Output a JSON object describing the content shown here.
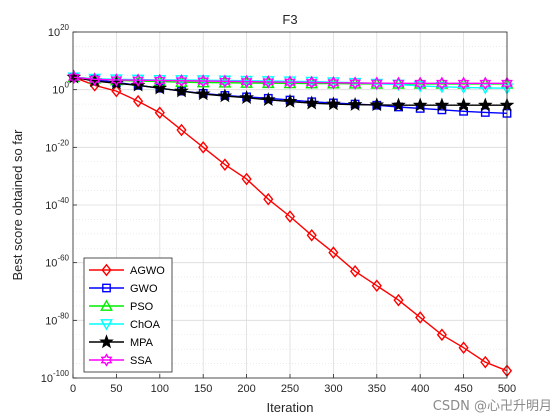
{
  "watermark": "CSDN @心卍升明月",
  "chart_data": {
    "type": "line",
    "title": "F3",
    "xlabel": "Iteration",
    "ylabel": "Best score obtained so far",
    "yscale": "log",
    "xlim": [
      0,
      500
    ],
    "ylim_exp": [
      -100,
      20
    ],
    "x_ticks": [
      0,
      50,
      100,
      150,
      200,
      250,
      300,
      350,
      400,
      450,
      500
    ],
    "y_tick_exps": [
      -100,
      -80,
      -60,
      -40,
      -20,
      0,
      20
    ],
    "grid": true,
    "minor_grid_y": true,
    "legend": "bottom-left",
    "x": [
      1,
      25,
      50,
      75,
      100,
      125,
      150,
      175,
      200,
      225,
      250,
      275,
      300,
      325,
      350,
      375,
      400,
      425,
      450,
      475,
      500
    ],
    "series": [
      {
        "name": "AGWO",
        "color": "#ff0000",
        "marker": "diamond",
        "log10_values": [
          4.3,
          1.5,
          -0.5,
          -4,
          -8,
          -14,
          -20,
          -26,
          -31,
          -38,
          -44,
          -50.5,
          -56.5,
          -63,
          -68,
          -73,
          -79,
          -85,
          -89.5,
          -94.5,
          -97.5
        ]
      },
      {
        "name": "GWO",
        "color": "#0000ff",
        "marker": "square",
        "log10_values": [
          4.3,
          3.5,
          2.5,
          1.5,
          0.5,
          -0.5,
          -1.3,
          -2,
          -2.5,
          -3,
          -3.6,
          -4.2,
          -4.6,
          -5,
          -5.4,
          -6,
          -6.5,
          -7,
          -7.5,
          -7.9,
          -8.2
        ]
      },
      {
        "name": "PSO",
        "color": "#00ee00",
        "marker": "triangle",
        "log10_values": [
          4.3,
          3.8,
          3.2,
          3,
          2.8,
          2.6,
          2.5,
          2.4,
          2.3,
          2.25,
          2.2,
          2.15,
          2.1,
          2.05,
          2.0,
          2.0,
          2.0,
          2.0,
          2.0,
          2.0,
          2.0
        ]
      },
      {
        "name": "ChOA",
        "color": "#00ffff",
        "marker": "triangle-down",
        "log10_values": [
          4.3,
          3.8,
          3.6,
          3.5,
          3.4,
          3.35,
          3.3,
          3.2,
          3.1,
          3.0,
          2.9,
          2.8,
          2.6,
          2.4,
          2.1,
          1.8,
          1.3,
          1.0,
          0.8,
          0.6,
          0.5
        ]
      },
      {
        "name": "MPA",
        "color": "#000000",
        "marker": "star",
        "log10_values": [
          4.3,
          3.0,
          2.2,
          1.5,
          0.5,
          -0.5,
          -1.5,
          -2.2,
          -2.8,
          -3.5,
          -4.1,
          -4.7,
          -5.0,
          -5.2,
          -5.3,
          -5.4,
          -5.4,
          -5.4,
          -5.4,
          -5.4,
          -5.4
        ]
      },
      {
        "name": "SSA",
        "color": "#ff00ff",
        "marker": "hexagram",
        "log10_values": [
          4.3,
          3.6,
          3.4,
          3.3,
          3.2,
          3.1,
          3.0,
          2.9,
          2.8,
          2.7,
          2.6,
          2.5,
          2.4,
          2.3,
          2.25,
          2.2,
          2.2,
          2.2,
          2.2,
          2.2,
          2.2
        ]
      }
    ]
  }
}
